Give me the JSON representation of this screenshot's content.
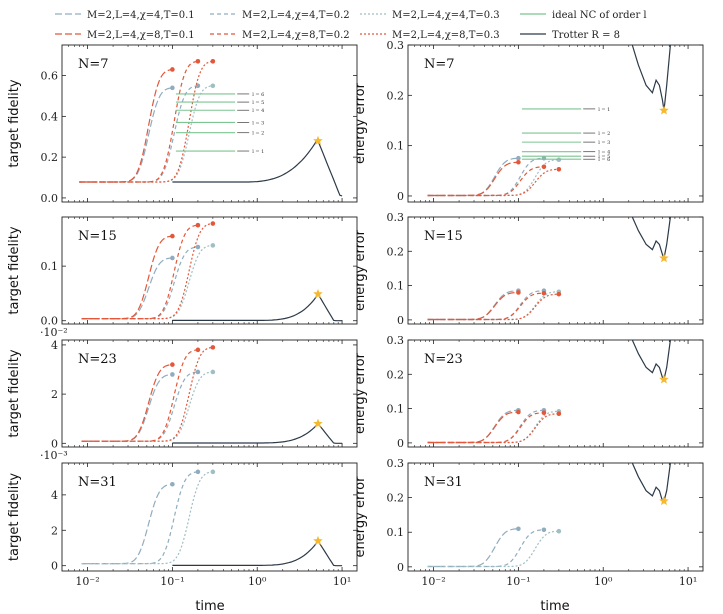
{
  "colors": {
    "blue_grey": "#8fadbf",
    "teal_grey": "#9fbfc4",
    "red": "#e4573a",
    "green": "#7cc490",
    "dark": "#2c3a48",
    "star": "#f5b82e"
  },
  "legend": [
    {
      "label": "M=2,L=4,χ=4,T=0.1",
      "style": "blue-dash"
    },
    {
      "label": "M=2,L=4,χ=4,T=0.2",
      "style": "blue-dash2"
    },
    {
      "label": "M=2,L=4,χ=4,T=0.3",
      "style": "blue-dot"
    },
    {
      "label": "ideal NC of order l",
      "style": "green"
    },
    {
      "label": "M=2,L=4,χ=8,T=0.1",
      "style": "red-dash"
    },
    {
      "label": "M=2,L=4,χ=8,T=0.2",
      "style": "red-dash2"
    },
    {
      "label": "M=2,L=4,χ=8,T=0.3",
      "style": "red-dot"
    },
    {
      "label": "Trotter R = 8",
      "style": "dark"
    }
  ],
  "axes": {
    "x_label": "time",
    "left_y_label": "target fidelity",
    "right_y_label": "energy error",
    "x_ticks": [
      "10⁻²",
      "10⁻¹",
      "10⁰",
      "10¹"
    ]
  },
  "chart_data": [
    {
      "type": "line",
      "panel": "left",
      "N_label": "N=7",
      "ylim": [
        -0.02,
        0.75
      ],
      "yticks": [
        "0.0",
        "0.2",
        "0.4",
        "0.6"
      ],
      "multiplier": "",
      "series": [
        {
          "name": "M=2,L=4,χ=4,T=0.1",
          "end": [
            0.1,
            0.54
          ]
        },
        {
          "name": "M=2,L=4,χ=4,T=0.2",
          "end": [
            0.2,
            0.55
          ]
        },
        {
          "name": "M=2,L=4,χ=4,T=0.3",
          "end": [
            0.3,
            0.55
          ]
        },
        {
          "name": "M=2,L=4,χ=8,T=0.1",
          "end": [
            0.1,
            0.63
          ]
        },
        {
          "name": "M=2,L=4,χ=8,T=0.2",
          "end": [
            0.2,
            0.67
          ]
        },
        {
          "name": "M=2,L=4,χ=8,T=0.3",
          "end": [
            0.3,
            0.67
          ]
        },
        {
          "name": "Trotter R = 8",
          "star": [
            5.2,
            0.28
          ]
        }
      ],
      "nc_levels": [
        {
          "l": "l = 6",
          "v": 0.51
        },
        {
          "l": "l = 5",
          "v": 0.47
        },
        {
          "l": "l = 4",
          "v": 0.43
        },
        {
          "l": "l = 3",
          "v": 0.37
        },
        {
          "l": "l = 2",
          "v": 0.32
        },
        {
          "l": "l = 1",
          "v": 0.23
        }
      ]
    },
    {
      "type": "line",
      "panel": "right",
      "N_label": "N=7",
      "ylim": [
        -0.012,
        0.3
      ],
      "yticks": [
        "0",
        "0.1",
        "0.2",
        "0.3"
      ],
      "multiplier": "",
      "series": [
        {
          "name": "M=2,L=4,χ=4,T=0.1",
          "end": [
            0.1,
            0.075
          ]
        },
        {
          "name": "M=2,L=4,χ=4,T=0.2",
          "end": [
            0.2,
            0.075
          ]
        },
        {
          "name": "M=2,L=4,χ=4,T=0.3",
          "end": [
            0.3,
            0.072
          ]
        },
        {
          "name": "M=2,L=4,χ=8,T=0.1",
          "end": [
            0.1,
            0.067
          ]
        },
        {
          "name": "M=2,L=4,χ=8,T=0.2",
          "end": [
            0.2,
            0.058
          ]
        },
        {
          "name": "M=2,L=4,χ=8,T=0.3",
          "end": [
            0.3,
            0.053
          ]
        },
        {
          "name": "Trotter R = 8",
          "star": [
            5.2,
            0.17
          ]
        }
      ],
      "nc_levels": [
        {
          "l": "l = 1",
          "v": 0.173
        },
        {
          "l": "l = 2",
          "v": 0.125
        },
        {
          "l": "l = 3",
          "v": 0.107
        },
        {
          "l": "l = 4",
          "v": 0.088
        },
        {
          "l": "l = 5",
          "v": 0.079
        },
        {
          "l": "l = 6",
          "v": 0.073
        }
      ]
    },
    {
      "type": "line",
      "panel": "left",
      "N_label": "N=15",
      "ylim": [
        -0.006,
        0.19
      ],
      "yticks": [
        "0.0",
        "0.1"
      ],
      "multiplier": "",
      "series": [
        {
          "name": "M=2,L=4,χ=4,T=0.1",
          "end": [
            0.1,
            0.115
          ]
        },
        {
          "name": "M=2,L=4,χ=4,T=0.2",
          "end": [
            0.2,
            0.135
          ]
        },
        {
          "name": "M=2,L=4,χ=4,T=0.3",
          "end": [
            0.3,
            0.138
          ]
        },
        {
          "name": "M=2,L=4,χ=8,T=0.1",
          "end": [
            0.1,
            0.155
          ]
        },
        {
          "name": "M=2,L=4,χ=8,T=0.2",
          "end": [
            0.2,
            0.175
          ]
        },
        {
          "name": "M=2,L=4,χ=8,T=0.3",
          "end": [
            0.3,
            0.178
          ]
        },
        {
          "name": "Trotter R = 8",
          "star": [
            5.2,
            0.049
          ]
        }
      ]
    },
    {
      "type": "line",
      "panel": "right",
      "N_label": "N=15",
      "ylim": [
        -0.012,
        0.3
      ],
      "yticks": [
        "0",
        "0.1",
        "0.2",
        "0.3"
      ],
      "multiplier": "",
      "series": [
        {
          "name": "M=2,L=4,χ=4,T=0.1",
          "end": [
            0.1,
            0.085
          ]
        },
        {
          "name": "M=2,L=4,χ=4,T=0.2",
          "end": [
            0.2,
            0.085
          ]
        },
        {
          "name": "M=2,L=4,χ=4,T=0.3",
          "end": [
            0.3,
            0.082
          ]
        },
        {
          "name": "M=2,L=4,χ=8,T=0.1",
          "end": [
            0.1,
            0.08
          ]
        },
        {
          "name": "M=2,L=4,χ=8,T=0.2",
          "end": [
            0.2,
            0.078
          ]
        },
        {
          "name": "M=2,L=4,χ=8,T=0.3",
          "end": [
            0.3,
            0.075
          ]
        },
        {
          "name": "Trotter R = 8",
          "star": [
            5.2,
            0.18
          ]
        }
      ]
    },
    {
      "type": "line",
      "panel": "left",
      "N_label": "N=23",
      "ylim": [
        -0.0015,
        0.042
      ],
      "yticks": [
        "0",
        "2",
        "4"
      ],
      "multiplier": "·10⁻²",
      "series": [
        {
          "name": "M=2,L=4,χ=4,T=0.1",
          "end": [
            0.1,
            0.028
          ]
        },
        {
          "name": "M=2,L=4,χ=4,T=0.2",
          "end": [
            0.2,
            0.029
          ]
        },
        {
          "name": "M=2,L=4,χ=4,T=0.3",
          "end": [
            0.3,
            0.029
          ]
        },
        {
          "name": "M=2,L=4,χ=8,T=0.1",
          "end": [
            0.1,
            0.032
          ]
        },
        {
          "name": "M=2,L=4,χ=8,T=0.2",
          "end": [
            0.2,
            0.038
          ]
        },
        {
          "name": "M=2,L=4,χ=8,T=0.3",
          "end": [
            0.3,
            0.039
          ]
        },
        {
          "name": "Trotter R = 8",
          "star": [
            5.2,
            0.008
          ]
        }
      ]
    },
    {
      "type": "line",
      "panel": "right",
      "N_label": "N=23",
      "ylim": [
        -0.012,
        0.3
      ],
      "yticks": [
        "0",
        "0.1",
        "0.2",
        "0.3"
      ],
      "multiplier": "",
      "series": [
        {
          "name": "M=2,L=4,χ=4,T=0.1",
          "end": [
            0.1,
            0.095
          ]
        },
        {
          "name": "M=2,L=4,χ=4,T=0.2",
          "end": [
            0.2,
            0.095
          ]
        },
        {
          "name": "M=2,L=4,χ=4,T=0.3",
          "end": [
            0.3,
            0.092
          ]
        },
        {
          "name": "M=2,L=4,χ=8,T=0.1",
          "end": [
            0.1,
            0.09
          ]
        },
        {
          "name": "M=2,L=4,χ=8,T=0.2",
          "end": [
            0.2,
            0.088
          ]
        },
        {
          "name": "M=2,L=4,χ=8,T=0.3",
          "end": [
            0.3,
            0.085
          ]
        },
        {
          "name": "Trotter R = 8",
          "star": [
            5.2,
            0.185
          ]
        }
      ]
    },
    {
      "type": "line",
      "panel": "left",
      "N_label": "N=31",
      "ylim": [
        -0.0003,
        0.0058
      ],
      "yticks": [
        "0",
        "2",
        "4"
      ],
      "multiplier": "·10⁻³",
      "series": [
        {
          "name": "M=2,L=4,χ=4,T=0.1",
          "end": [
            0.1,
            0.0046
          ]
        },
        {
          "name": "M=2,L=4,χ=4,T=0.2",
          "end": [
            0.2,
            0.0053
          ]
        },
        {
          "name": "M=2,L=4,χ=4,T=0.3",
          "end": [
            0.3,
            0.0053
          ]
        },
        {
          "name": "Trotter R = 8",
          "star": [
            5.2,
            0.0014
          ]
        }
      ]
    },
    {
      "type": "line",
      "panel": "right",
      "N_label": "N=31",
      "ylim": [
        -0.012,
        0.3
      ],
      "yticks": [
        "0",
        "0.1",
        "0.2",
        "0.3"
      ],
      "multiplier": "",
      "series": [
        {
          "name": "M=2,L=4,χ=4,T=0.1",
          "end": [
            0.1,
            0.11
          ]
        },
        {
          "name": "M=2,L=4,χ=4,T=0.2",
          "end": [
            0.2,
            0.107
          ]
        },
        {
          "name": "M=2,L=4,χ=4,T=0.3",
          "end": [
            0.3,
            0.103
          ]
        },
        {
          "name": "Trotter R = 8",
          "star": [
            5.2,
            0.19
          ]
        }
      ]
    }
  ]
}
